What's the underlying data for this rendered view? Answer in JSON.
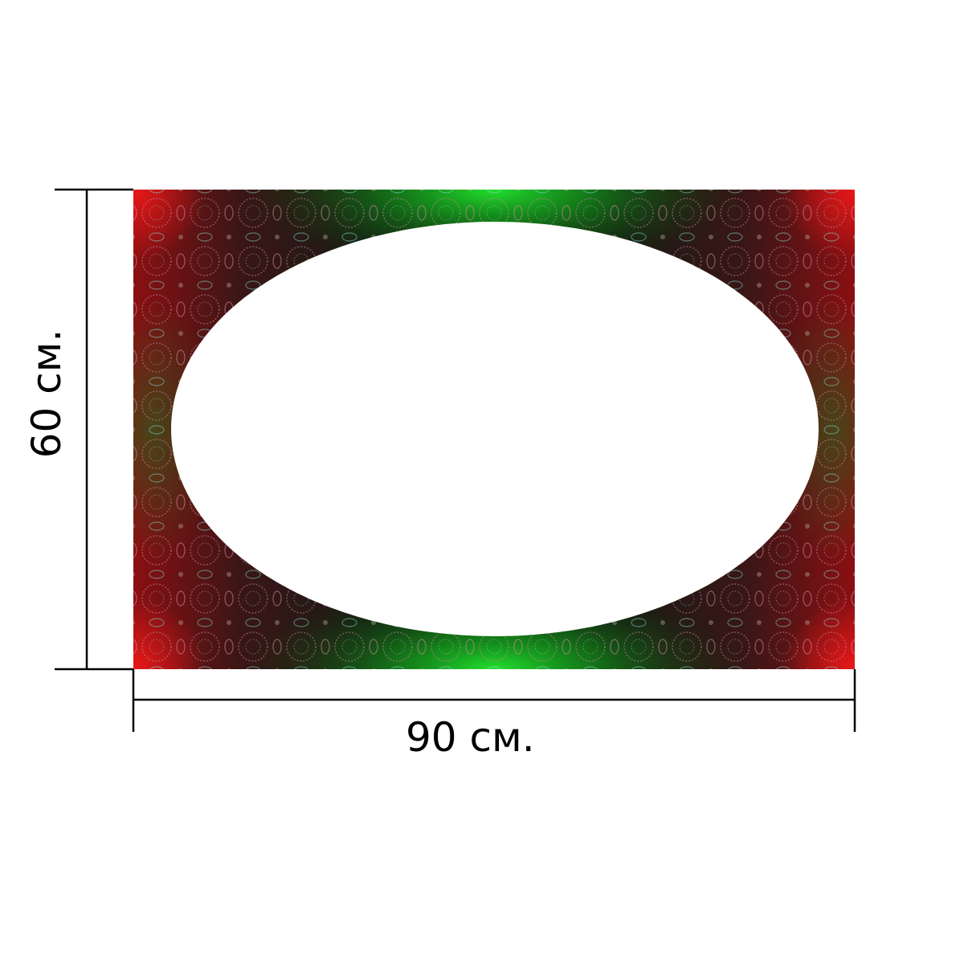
{
  "product": {
    "width_label": "90 см.",
    "height_label": "60 см.",
    "width_value": 90,
    "height_value": 60,
    "unit": "см.",
    "shape": "rectangle with oval white cutout",
    "colors": {
      "corner_red": "#e01a1a",
      "center_green": "#1fd42a",
      "dark_base": "#1c1410",
      "pattern_pink": "#d98aa8",
      "pattern_cyan": "#7fd6d0",
      "cutout": "#ffffff",
      "dimension_lines": "#000000"
    }
  }
}
